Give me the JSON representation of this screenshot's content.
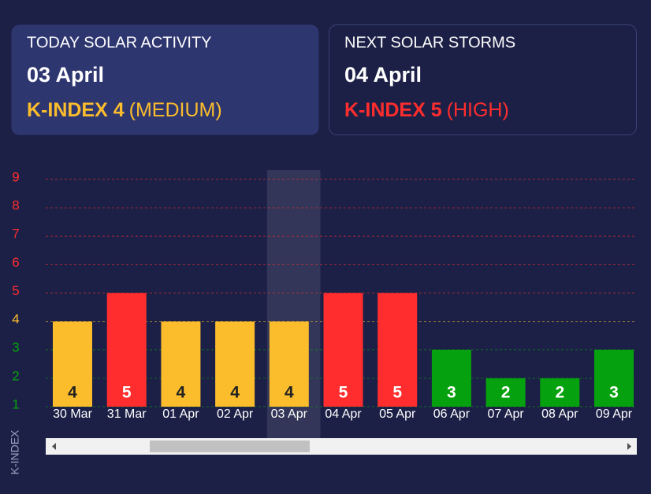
{
  "cards": [
    {
      "title": "TODAY SOLAR ACTIVITY",
      "date": "03 April",
      "index_label": "K-INDEX 4",
      "level": "(MEDIUM)",
      "color": "#fbbd2c",
      "background": "#2e3670"
    },
    {
      "title": "NEXT SOLAR STORMS",
      "date": "04 April",
      "index_label": "K-INDEX 5",
      "level": "(HIGH)",
      "color": "#ff2d2d",
      "background": "#1c2046"
    }
  ],
  "chart_data": {
    "type": "bar",
    "y_label": "K-INDEX",
    "categories": [
      "30 Mar",
      "31 Mar",
      "01 Apr",
      "02 Apr",
      "03 Apr",
      "04 Apr",
      "05 Apr",
      "06 Apr",
      "07 Apr",
      "08 Apr",
      "09 Apr"
    ],
    "values": [
      4,
      5,
      4,
      4,
      4,
      5,
      5,
      3,
      2,
      2,
      3
    ],
    "colors": [
      "#fbbd2c",
      "#ff2d2d",
      "#fbbd2c",
      "#fbbd2c",
      "#fbbd2c",
      "#ff2d2d",
      "#ff2d2d",
      "#06a10e",
      "#06a10e",
      "#06a10e",
      "#06a10e"
    ],
    "value_label_colors": [
      "#222222",
      "#ffffff",
      "#222222",
      "#222222",
      "#222222",
      "#ffffff",
      "#ffffff",
      "#ffffff",
      "#ffffff",
      "#ffffff",
      "#ffffff"
    ],
    "highlight_category": "03 Apr",
    "ylim": [
      1,
      9
    ],
    "yticks": [
      1,
      2,
      3,
      4,
      5,
      6,
      7,
      8,
      9
    ],
    "ytick_colors": [
      "#06a10e",
      "#06a10e",
      "#06a10e",
      "#fbbd2c",
      "#ff2d2d",
      "#ff2d2d",
      "#ff2d2d",
      "#ff2d2d",
      "#ff2d2d"
    ],
    "grid": true
  }
}
